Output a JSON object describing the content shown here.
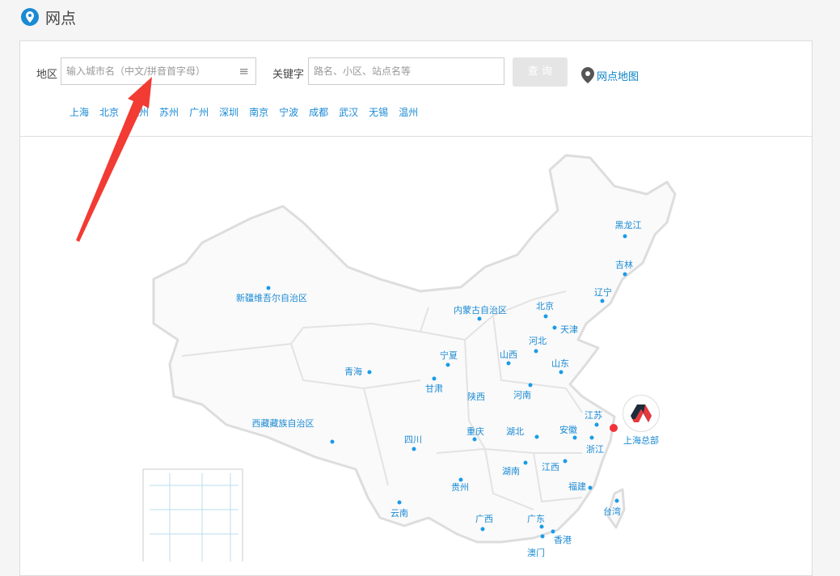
{
  "header": {
    "title": "网点",
    "icon": "location-pin-icon",
    "accent": "#1a8ad4"
  },
  "search": {
    "region_label": "地区",
    "region_placeholder": "输入城市名（中文/拼音首字母）",
    "keyword_label": "关键字",
    "keyword_placeholder": "路名、小区、站点名等",
    "query_button": "查 询",
    "map_link": "网点地图"
  },
  "cities": [
    "上海",
    "北京",
    "杭州",
    "苏州",
    "广州",
    "深圳",
    "南京",
    "宁波",
    "成都",
    "武汉",
    "无锡",
    "温州"
  ],
  "map": {
    "headquarters_label": "上海总部",
    "headquarters_color": "#f0333a",
    "provinces": [
      {
        "name": "黑龙江"
      },
      {
        "name": "吉林"
      },
      {
        "name": "辽宁"
      },
      {
        "name": "北京"
      },
      {
        "name": "天津"
      },
      {
        "name": "河北"
      },
      {
        "name": "山西"
      },
      {
        "name": "山东"
      },
      {
        "name": "内蒙古自治区"
      },
      {
        "name": "新疆维吾尔自治区"
      },
      {
        "name": "宁夏"
      },
      {
        "name": "青海"
      },
      {
        "name": "甘肃"
      },
      {
        "name": "陕西"
      },
      {
        "name": "河南"
      },
      {
        "name": "西藏藏族自治区"
      },
      {
        "name": "四川"
      },
      {
        "name": "重庆"
      },
      {
        "name": "湖北"
      },
      {
        "name": "安徽"
      },
      {
        "name": "江苏"
      },
      {
        "name": "浙江"
      },
      {
        "name": "湖南"
      },
      {
        "name": "江西"
      },
      {
        "name": "贵州"
      },
      {
        "name": "福建"
      },
      {
        "name": "台湾"
      },
      {
        "name": "云南"
      },
      {
        "name": "广西"
      },
      {
        "name": "广东"
      },
      {
        "name": "香港"
      },
      {
        "name": "澳门"
      }
    ]
  }
}
